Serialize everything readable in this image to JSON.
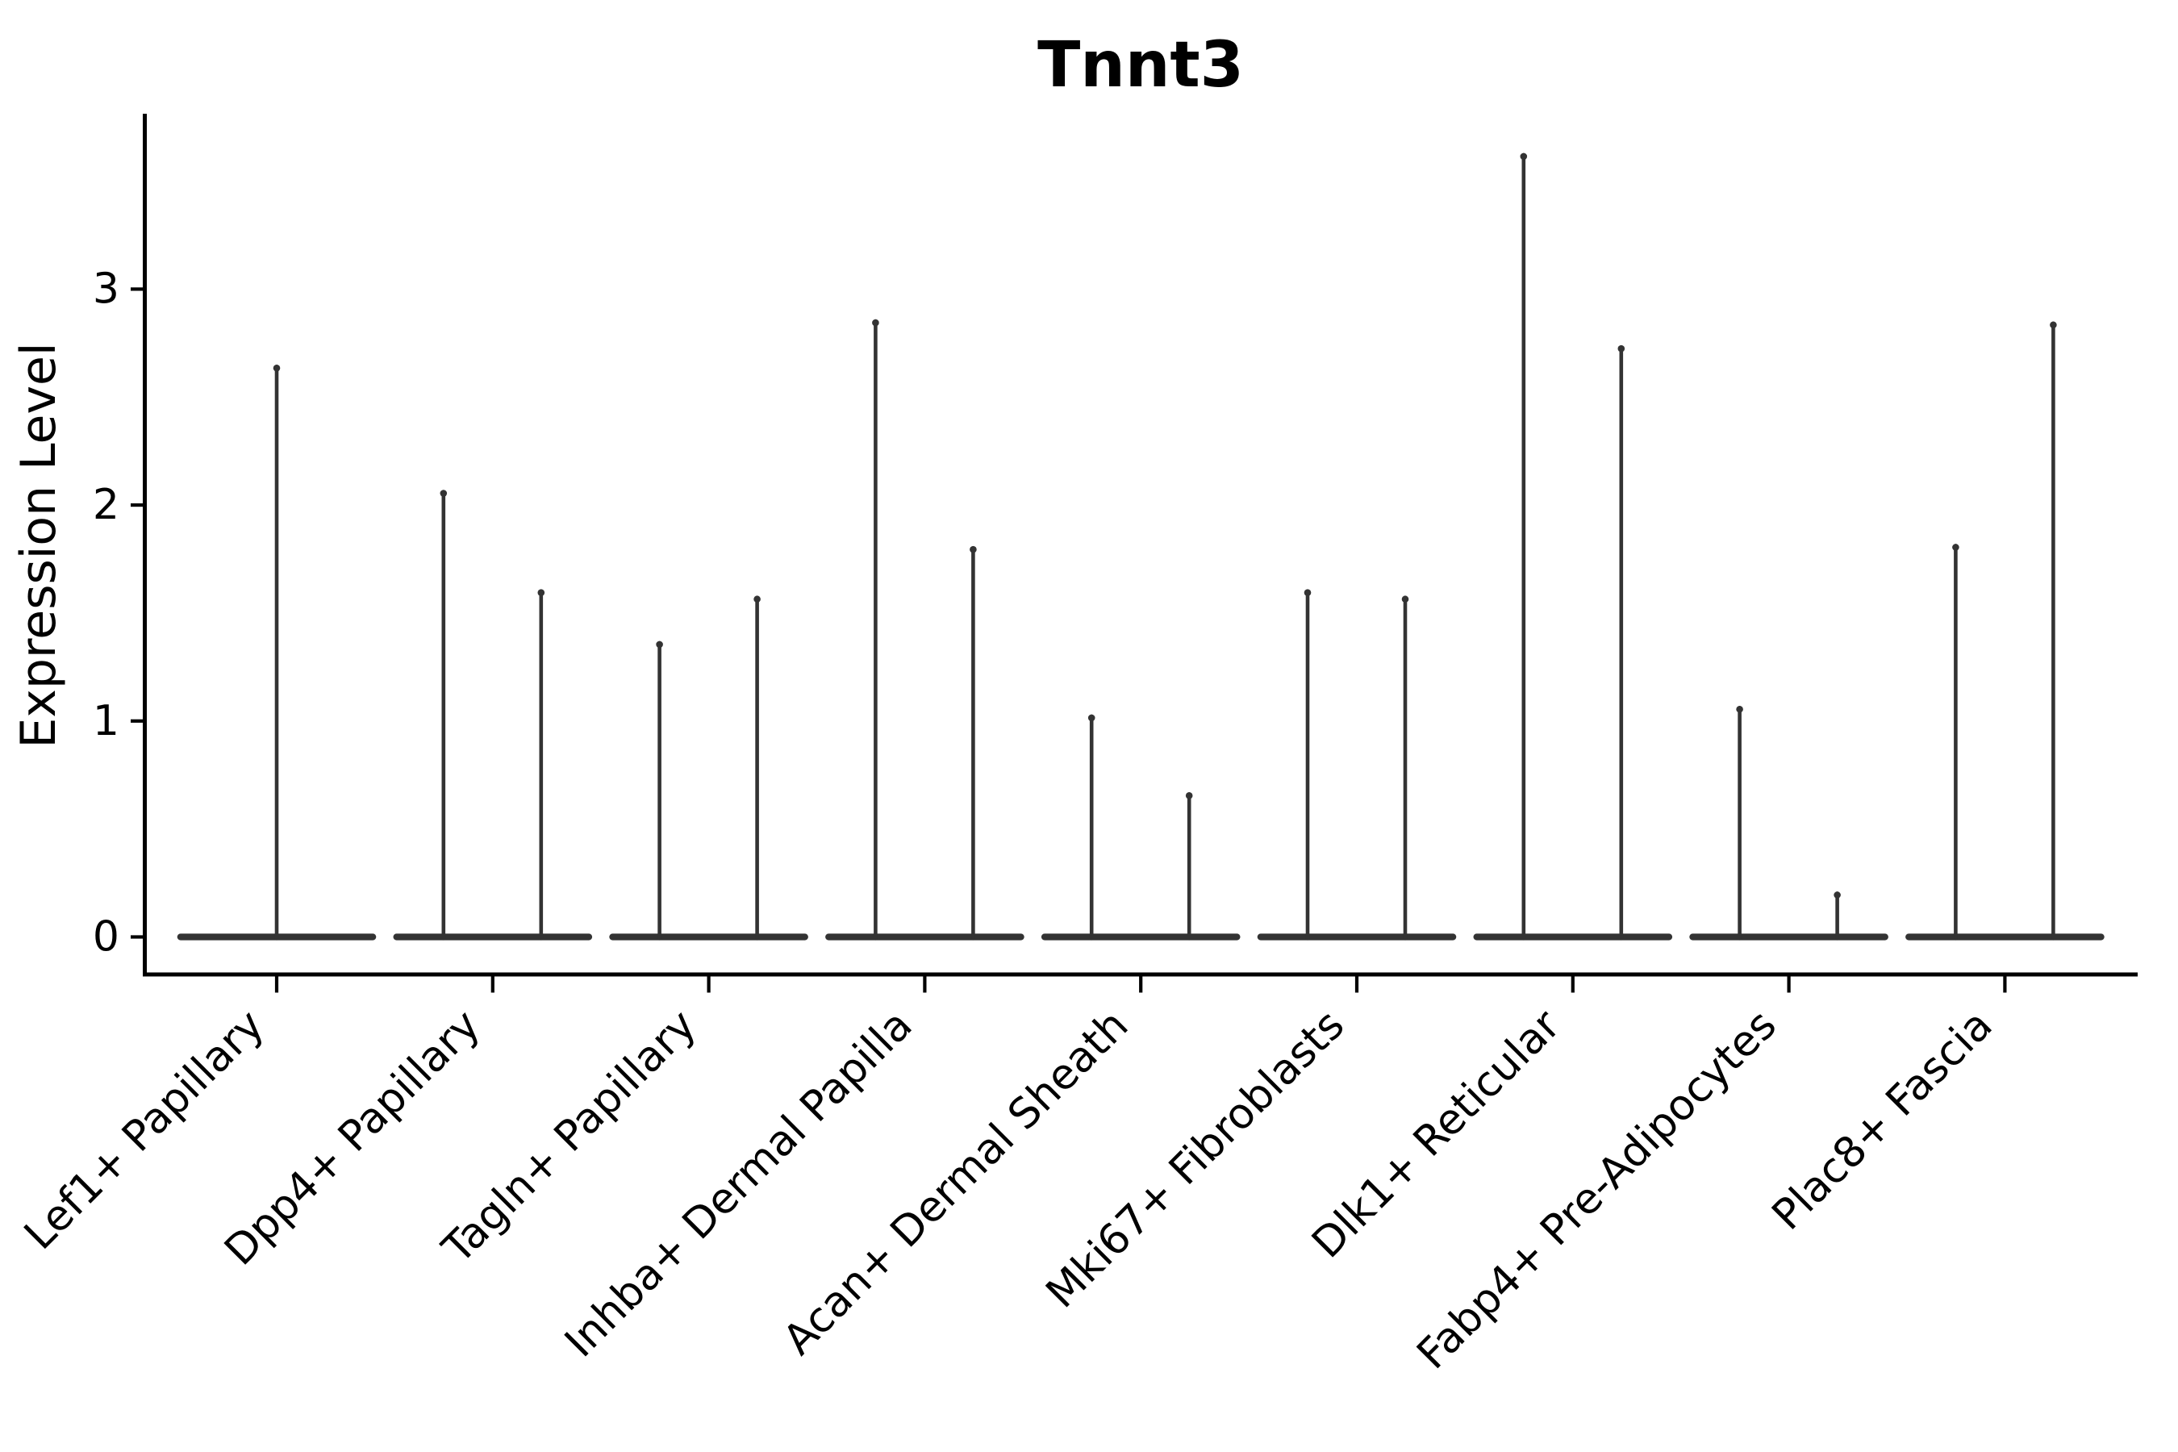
{
  "page": {
    "background": "#ffffff"
  },
  "chart_data": {
    "type": "violin",
    "title": "Tnnt3",
    "xlabel": "",
    "ylabel": "Expression Level",
    "yticks": [
      0,
      1,
      2,
      3
    ],
    "ylim": [
      -0.19,
      3.82
    ],
    "grid": false,
    "legend": "none",
    "baseline_value": 0,
    "violin_style": "wide flat base at expression 0 with one or two thin density spikes rising to the peak expression value",
    "categories": [
      "Lef1+ Papillary",
      "Dpp4+ Papillary",
      "Tagln+ Papillary",
      "Inhba+ Dermal Papilla",
      "Acan+ Dermal Sheath",
      "Mki67+ Fibroblasts",
      "Dlk1+ Reticular",
      "Fabp4+ Pre-Adipocytes",
      "Plac8+ Fascia"
    ],
    "series": [
      {
        "category": "Lef1+ Papillary",
        "violin_peak_expression": [
          2.65
        ]
      },
      {
        "category": "Dpp4+ Papillary",
        "violin_peak_expression": [
          2.07,
          1.61
        ]
      },
      {
        "category": "Tagln+ Papillary",
        "violin_peak_expression": [
          1.37,
          1.58
        ]
      },
      {
        "category": "Inhba+ Dermal Papilla",
        "violin_peak_expression": [
          2.86,
          1.81
        ]
      },
      {
        "category": "Acan+ Dermal Sheath",
        "violin_peak_expression": [
          1.03,
          0.67
        ]
      },
      {
        "category": "Mki67+ Fibroblasts",
        "violin_peak_expression": [
          1.61,
          1.58
        ]
      },
      {
        "category": "Dlk1+ Reticular",
        "violin_peak_expression": [
          3.63,
          2.74
        ]
      },
      {
        "category": "Fabp4+ Pre-Adipocytes",
        "violin_peak_expression": [
          1.07,
          0.21
        ]
      },
      {
        "category": "Plac8+ Fascia",
        "violin_peak_expression": [
          1.82,
          2.85
        ]
      }
    ]
  },
  "colors": {
    "violin": "#333333",
    "axis": "#000000",
    "text": "#000000",
    "background": "#ffffff"
  }
}
